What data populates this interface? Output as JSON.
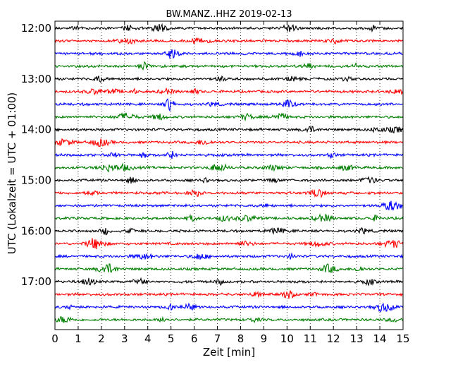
{
  "chart_data": {
    "type": "line",
    "title": "BW.MANZ..HHZ 2019-02-13",
    "xlabel": "Zeit  [min]",
    "ylabel": "UTC (Lokalzeit = UTC + 01:00)",
    "xlim": [
      0,
      15
    ],
    "x_ticks": [
      "0",
      "1",
      "2",
      "3",
      "4",
      "5",
      "6",
      "7",
      "8",
      "9",
      "10",
      "11",
      "12",
      "13",
      "14",
      "15"
    ],
    "y_ticks": [
      "12:00",
      "13:00",
      "14:00",
      "15:00",
      "16:00",
      "17:00"
    ],
    "grid": "vertical-dotted",
    "series_colors": [
      "#000000",
      "#ff0000",
      "#0000ff",
      "#007f00"
    ],
    "traces": [
      {
        "start": "12:00",
        "color": "#000000"
      },
      {
        "start": "12:15",
        "color": "#ff0000"
      },
      {
        "start": "12:30",
        "color": "#0000ff"
      },
      {
        "start": "12:45",
        "color": "#007f00"
      },
      {
        "start": "13:00",
        "color": "#000000"
      },
      {
        "start": "13:15",
        "color": "#ff0000"
      },
      {
        "start": "13:30",
        "color": "#0000ff"
      },
      {
        "start": "13:45",
        "color": "#007f00"
      },
      {
        "start": "14:00",
        "color": "#000000"
      },
      {
        "start": "14:15",
        "color": "#ff0000"
      },
      {
        "start": "14:30",
        "color": "#0000ff"
      },
      {
        "start": "14:45",
        "color": "#007f00"
      },
      {
        "start": "15:00",
        "color": "#000000"
      },
      {
        "start": "15:15",
        "color": "#ff0000"
      },
      {
        "start": "15:30",
        "color": "#0000ff"
      },
      {
        "start": "15:45",
        "color": "#007f00"
      },
      {
        "start": "16:00",
        "color": "#000000"
      },
      {
        "start": "16:15",
        "color": "#ff0000"
      },
      {
        "start": "16:30",
        "color": "#0000ff"
      },
      {
        "start": "16:45",
        "color": "#007f00"
      },
      {
        "start": "17:00",
        "color": "#000000"
      },
      {
        "start": "17:15",
        "color": "#ff0000"
      },
      {
        "start": "17:30",
        "color": "#0000ff"
      },
      {
        "start": "17:45",
        "color": "#007f00"
      }
    ]
  }
}
